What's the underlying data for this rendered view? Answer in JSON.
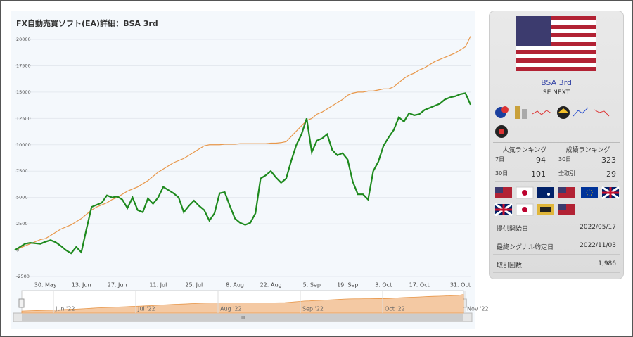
{
  "chart_data": {
    "type": "line",
    "title": "FX自動売買ソフト(EA)詳細：BSA 3rd",
    "categories": [
      null,
      null,
      null,
      null,
      null,
      null,
      "30. May",
      null,
      null,
      null,
      null,
      null,
      null,
      "13. Jun",
      null,
      null,
      null,
      null,
      null,
      null,
      "27. Jun",
      null,
      null,
      null,
      null,
      null,
      null,
      null,
      "11. Jul",
      null,
      null,
      null,
      null,
      null,
      null,
      "25. Jul",
      null,
      null,
      null,
      null,
      null,
      null,
      null,
      "8. Aug",
      null,
      null,
      null,
      null,
      null,
      null,
      "22. Aug",
      null,
      null,
      null,
      null,
      null,
      null,
      null,
      "5. Sep",
      null,
      null,
      null,
      null,
      null,
      null,
      "19. Sep",
      null,
      null,
      null,
      null,
      null,
      null,
      "3. Oct",
      null,
      null,
      null,
      null,
      null,
      null,
      "17. Oct",
      null,
      null,
      null,
      null,
      null,
      null,
      null,
      "31. Oct",
      null,
      null
    ],
    "series": [
      {
        "color": "#e8974a",
        "values": [
          0,
          200,
          400,
          600,
          800,
          1000,
          1100,
          1400,
          1700,
          2000,
          2200,
          2400,
          2700,
          3000,
          3400,
          3800,
          4100,
          4300,
          4500,
          4800,
          5000,
          5300,
          5600,
          5800,
          6000,
          6300,
          6600,
          7000,
          7400,
          7700,
          8000,
          8300,
          8500,
          8700,
          9000,
          9300,
          9600,
          9900,
          10000,
          10000,
          10000,
          10050,
          10050,
          10050,
          10100,
          10100,
          10100,
          10100,
          10100,
          10100,
          10150,
          10150,
          10200,
          10300,
          10800,
          11300,
          11800,
          12300,
          12500,
          12900,
          13100,
          13400,
          13700,
          14000,
          14300,
          14700,
          14900,
          15000,
          15000,
          15100,
          15100,
          15200,
          15300,
          15300,
          15500,
          15900,
          16300,
          16600,
          16800,
          17100,
          17300,
          17600,
          17900,
          18100,
          18300,
          18500,
          18700,
          19000,
          19300,
          20300
        ]
      },
      {
        "color": "#1e8a1e",
        "values": [
          0,
          300,
          600,
          700,
          650,
          600,
          800,
          950,
          750,
          400,
          0,
          -300,
          300,
          -200,
          2000,
          4100,
          4300,
          4500,
          5200,
          5000,
          5100,
          4800,
          4000,
          5000,
          3800,
          3600,
          4900,
          4400,
          5000,
          6000,
          5700,
          5400,
          5000,
          3600,
          4200,
          4700,
          4200,
          3800,
          2800,
          3500,
          5400,
          5500,
          4200,
          3000,
          2600,
          2400,
          2600,
          3500,
          6800,
          7100,
          7500,
          6900,
          6400,
          6800,
          8500,
          10000,
          11000,
          12500,
          9300,
          10400,
          10600,
          11000,
          9500,
          9000,
          9200,
          8600,
          6500,
          5300,
          5300,
          4800,
          7500,
          8400,
          9900,
          10700,
          11400,
          12600,
          12200,
          13000,
          12800,
          12900,
          13300,
          13500,
          13700,
          13900,
          14300,
          14500,
          14600,
          14800,
          14900,
          13800
        ]
      }
    ],
    "ylim": [
      -2500,
      20000
    ],
    "yticks": [
      -2500,
      0,
      2500,
      5000,
      7500,
      10000,
      12500,
      15000,
      17500,
      20000
    ],
    "navigator_labels": [
      "Jun '22",
      "Jul '22",
      "Aug '22",
      "Sep '22",
      "Oct '22",
      "Nov '22"
    ],
    "scroll_label": "III"
  },
  "sidebar": {
    "name": "BSA 3rd",
    "company": "SE NEXT",
    "popular_ranking": {
      "title": "人気ランキング",
      "rows": [
        [
          "7日",
          "94"
        ],
        [
          "30日",
          "101"
        ]
      ]
    },
    "performance_ranking": {
      "title": "成績ランキング",
      "rows": [
        [
          "30日",
          "323"
        ],
        [
          "全取引",
          "29"
        ]
      ]
    },
    "info": [
      [
        "提供開始日",
        "2022/05/17"
      ],
      [
        "最終シグナル約定日",
        "2022/11/03"
      ],
      [
        "取引回数",
        "1,986"
      ]
    ]
  }
}
